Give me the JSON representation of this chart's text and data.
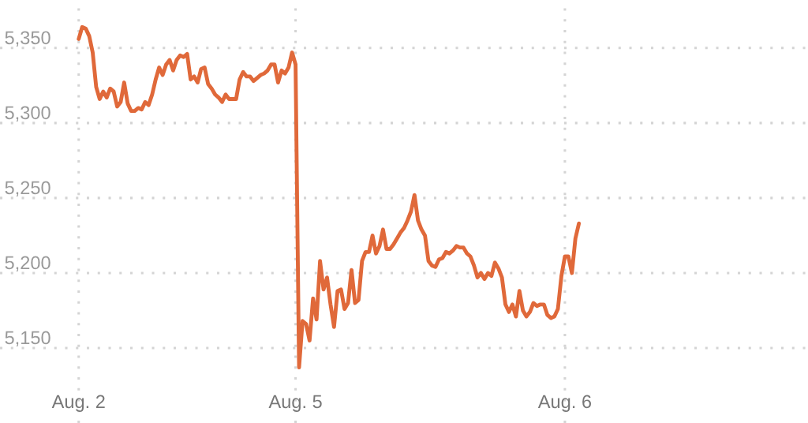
{
  "chart_data": {
    "type": "line",
    "categories": [
      null,
      null,
      null,
      null,
      null,
      null,
      null,
      null,
      null,
      null,
      null,
      null,
      null,
      null,
      null,
      null,
      null,
      null,
      null,
      null,
      null,
      null,
      "Aug. 2",
      null,
      null,
      null,
      null,
      null,
      null,
      null,
      null,
      null,
      null,
      null,
      null,
      null,
      null,
      null,
      null,
      null,
      null,
      null,
      null,
      null,
      null,
      null,
      null,
      null,
      null,
      null,
      null,
      null,
      null,
      null,
      null,
      null,
      null,
      null,
      null,
      null,
      null,
      null,
      null,
      null,
      null,
      null,
      null,
      null,
      null,
      null,
      null,
      null,
      null,
      null,
      null,
      null,
      null,
      null,
      null,
      null,
      null,
      null,
      null,
      null,
      "Aug. 5",
      null,
      null,
      null,
      null,
      null,
      null,
      null,
      null,
      null,
      null,
      null,
      null,
      null,
      null,
      null,
      null,
      null,
      null,
      null,
      null,
      null,
      null,
      null,
      null,
      null,
      null,
      null,
      null,
      null,
      null,
      null,
      null,
      null,
      null,
      null,
      null,
      null,
      null,
      null,
      null,
      null,
      null,
      null,
      null,
      null,
      null,
      null,
      null,
      null,
      null,
      null,
      null,
      null,
      null,
      null,
      null,
      null,
      null,
      null,
      null,
      null,
      null,
      null,
      null,
      null,
      null,
      null,
      null,
      null,
      null,
      null,
      null,
      null,
      null,
      null,
      null,
      "Aug. 6",
      null,
      null,
      null,
      null,
      null,
      null,
      null,
      null,
      null,
      null,
      null,
      null,
      null,
      null,
      null,
      null,
      null,
      null,
      null,
      null,
      null,
      null,
      null,
      null,
      null,
      null,
      null,
      null,
      null,
      null,
      null,
      null,
      null,
      null,
      null,
      null,
      null,
      null,
      null,
      null,
      null,
      null,
      null,
      null,
      null,
      null,
      null,
      null,
      null,
      null,
      null,
      null,
      null,
      null,
      null,
      null,
      null,
      null,
      null,
      null,
      null,
      null,
      null,
      null,
      null,
      null,
      null,
      null,
      null
    ],
    "series": [
      {
        "color": "#e0693a",
        "values": [
          null,
          null,
          null,
          null,
          null,
          null,
          null,
          null,
          null,
          null,
          null,
          null,
          null,
          null,
          null,
          null,
          null,
          null,
          null,
          null,
          null,
          null,
          5356,
          5364,
          5363,
          5358,
          5347,
          5324,
          5316,
          5321,
          5317,
          5323,
          5321,
          5311,
          5314,
          5327,
          5313,
          5308,
          5308,
          5310,
          5309,
          5314,
          5312,
          5319,
          5329,
          5337,
          5332,
          5339,
          5342,
          5335,
          5342,
          5345,
          5344,
          5346,
          5329,
          5331,
          5327,
          5336,
          5337,
          5326,
          5323,
          5319,
          5317,
          5314,
          5319,
          5316,
          5316,
          5316,
          5329,
          5334,
          5331,
          5331,
          5328,
          5330,
          5332,
          5333,
          5335,
          5339,
          5339,
          5327,
          5335,
          5333,
          5337,
          5347,
          5339,
          5137,
          5168,
          5166,
          5155,
          5183,
          5169,
          5208,
          5189,
          5197,
          5179,
          5164,
          5188,
          5189,
          5176,
          5180,
          5202,
          5180,
          5182,
          5208,
          5214,
          5214,
          5225,
          5213,
          5218,
          5229,
          5216,
          5216,
          5219,
          5223,
          5227,
          5230,
          5235,
          5241,
          5252,
          5235,
          5229,
          5225,
          5208,
          5205,
          5204,
          5209,
          5210,
          5214,
          5213,
          5215,
          5218,
          5217,
          5217,
          5213,
          5211,
          5205,
          5197,
          5200,
          5196,
          5200,
          5198,
          5207,
          5203,
          5197,
          5179,
          5174,
          5179,
          5171,
          5188,
          5175,
          5171,
          5174,
          5180,
          5178,
          5179,
          5179,
          5172,
          5170,
          5171,
          5176,
          5198,
          5211,
          5211,
          5200,
          5223,
          5233,
          null,
          null,
          null,
          null,
          null,
          null,
          null,
          null,
          null,
          null,
          null,
          null,
          null,
          null,
          null,
          null,
          null,
          null,
          null,
          null,
          null,
          null,
          null,
          null,
          null,
          null,
          null,
          null,
          null,
          null,
          null,
          null,
          null,
          null,
          null,
          null,
          null,
          null,
          null,
          null,
          null,
          null,
          null,
          null,
          null,
          null,
          null,
          null,
          null,
          null,
          null,
          null,
          null,
          null,
          null,
          null,
          null,
          null,
          null,
          null,
          null,
          null,
          null,
          null,
          null
        ]
      }
    ],
    "ylim": [
      5100,
      5382
    ],
    "yticks": [
      {
        "value": 5150,
        "label": "5,150"
      },
      {
        "value": 5200,
        "label": "5,200"
      },
      {
        "value": 5250,
        "label": "5,250"
      },
      {
        "value": 5300,
        "label": "5,300"
      },
      {
        "value": 5350,
        "label": "5,350"
      }
    ],
    "grid": true,
    "marker": "none",
    "line_style": "solid",
    "legend": false
  }
}
